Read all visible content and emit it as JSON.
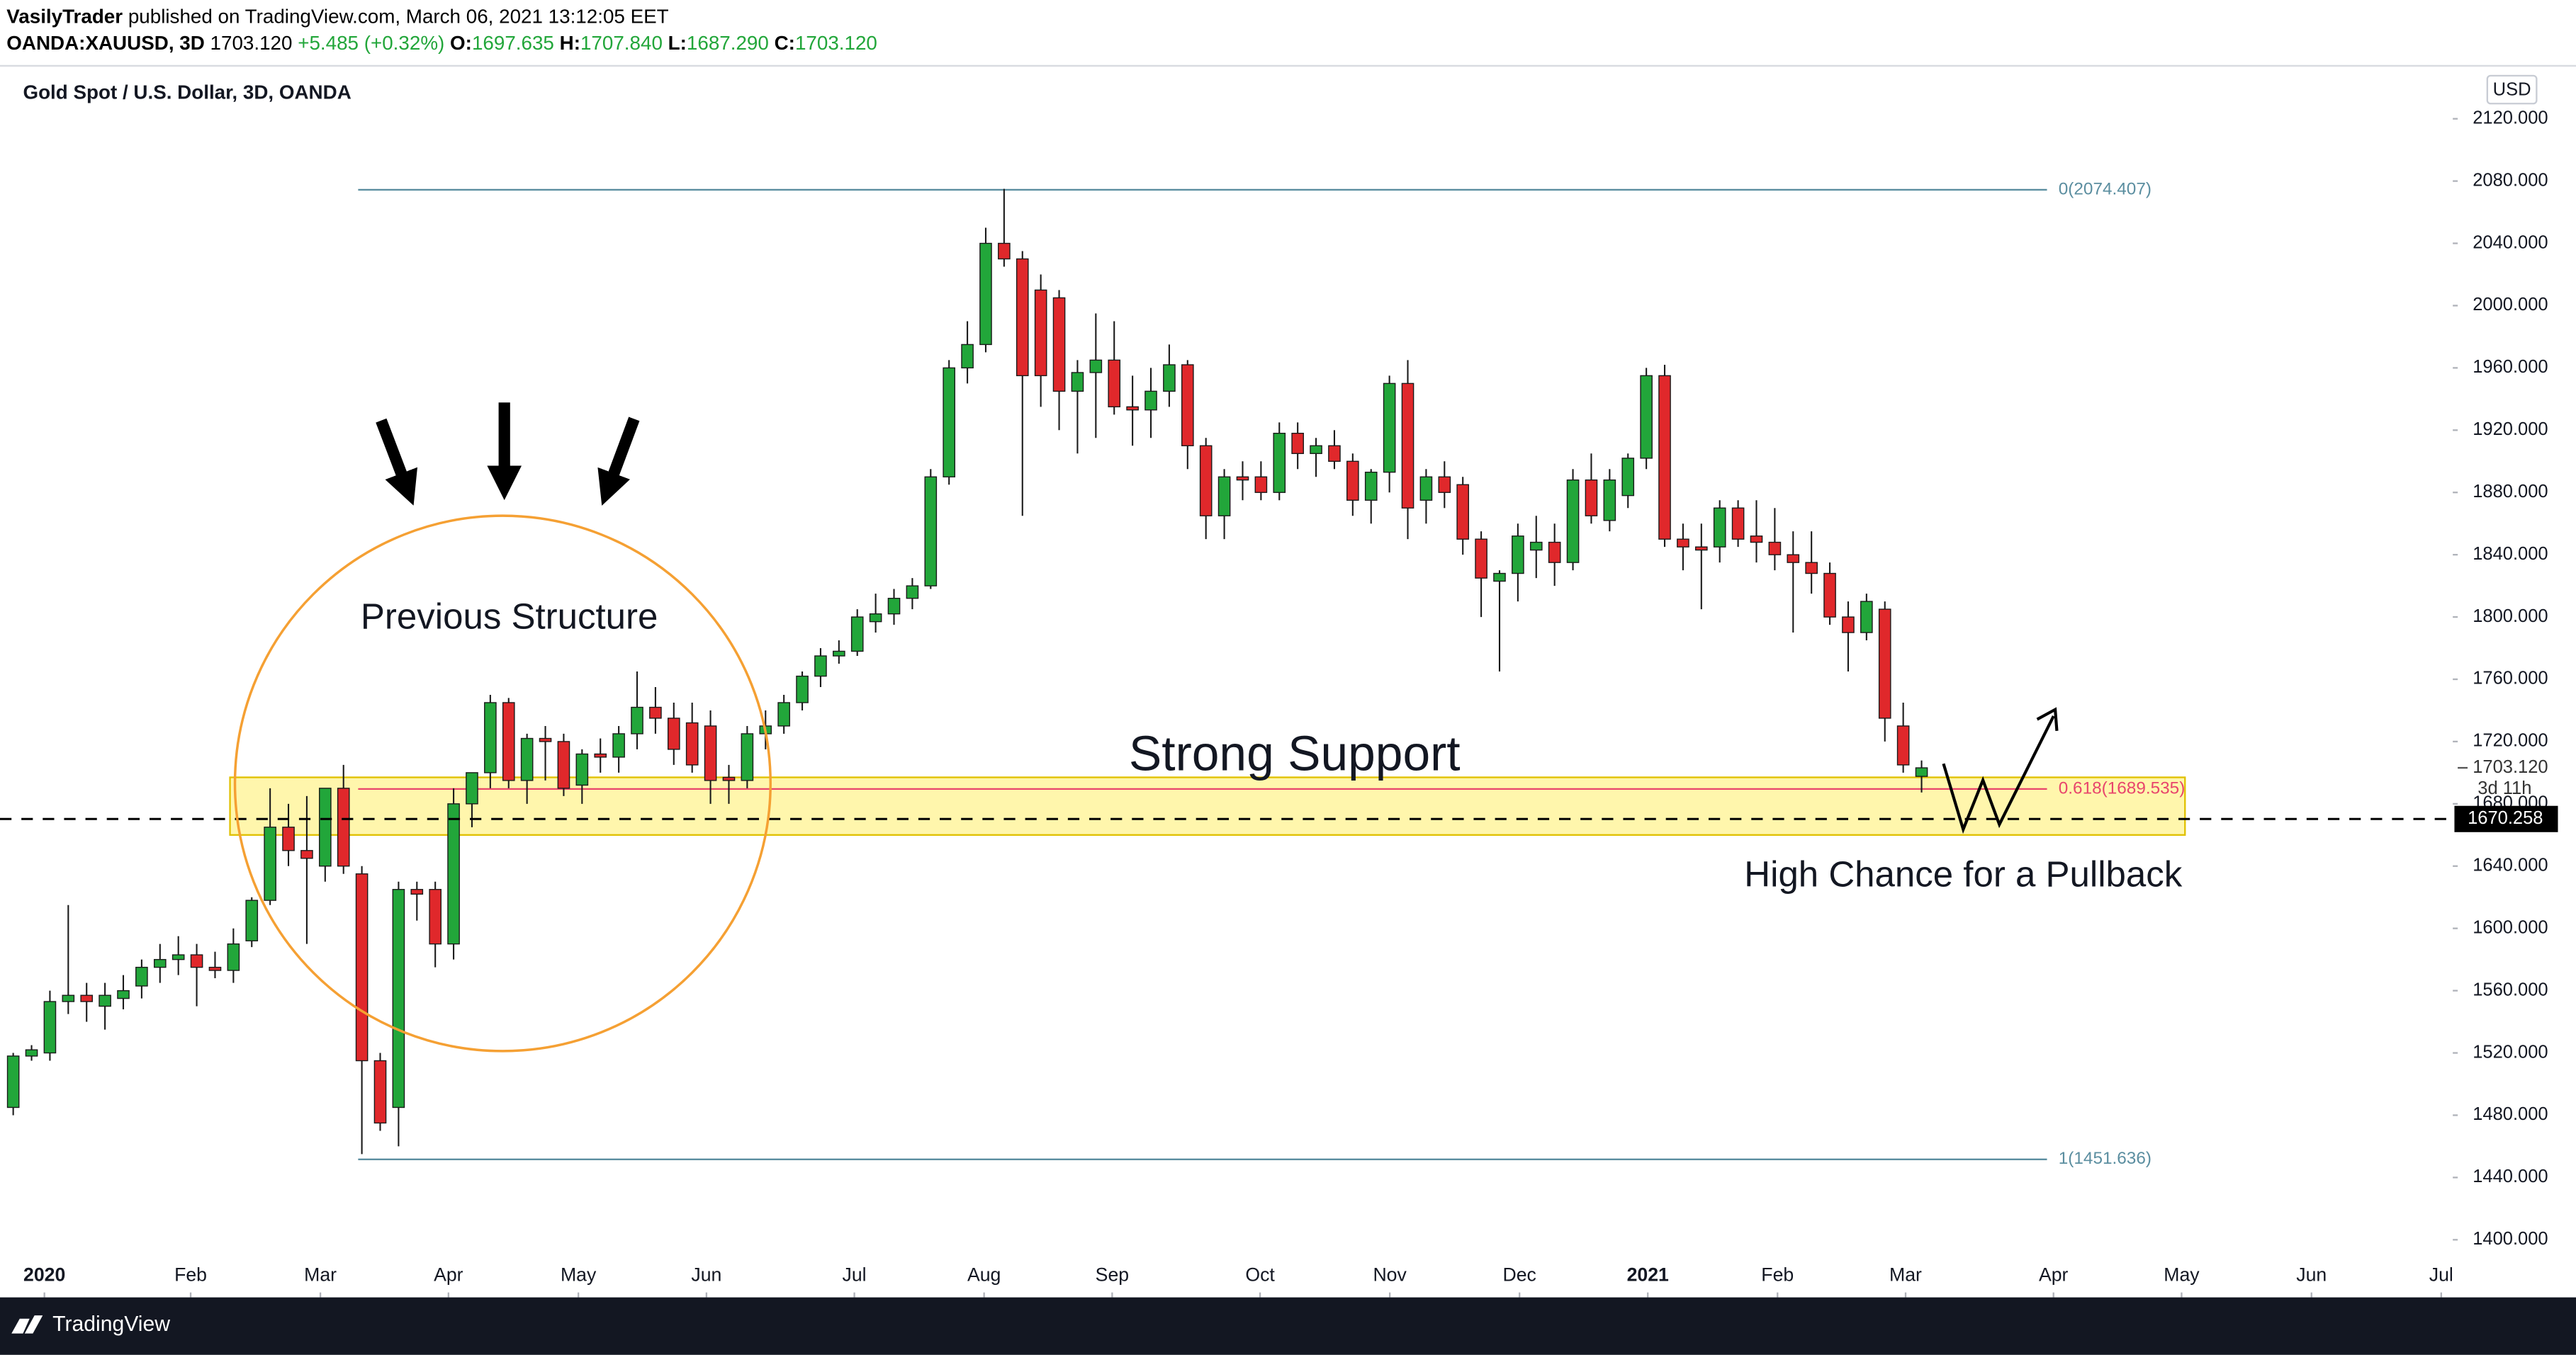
{
  "header": {
    "author": "VasilyTrader",
    "published": "published on TradingView.com, March 06, 2021 13:12:05 EET",
    "symbol": "OANDA:XAUUSD, 3D",
    "price": "1703.120",
    "change": "+5.485 (+0.32%)",
    "o_key": "O:",
    "o": "1697.635",
    "h_key": "H:",
    "h": "1707.840",
    "l_key": "L:",
    "l": "1687.290",
    "c_key": "C:",
    "c": "1703.120"
  },
  "footer": {
    "brand": "TradingView"
  },
  "chart_data": {
    "type": "candlestick",
    "title": "Gold Spot / U.S. Dollar, 3D, OANDA",
    "currency": "USD",
    "up_color": "#22a63a",
    "down_color": "#e0282b",
    "open": [
      1485,
      1518,
      1520,
      1553,
      1557,
      1550,
      1555,
      1563,
      1575,
      1580,
      1583,
      1575,
      1573,
      1592,
      1618,
      1665,
      1650,
      1640,
      1690,
      1635,
      1515,
      1485,
      1625,
      1625,
      1590,
      1680,
      1700,
      1745,
      1695,
      1722,
      1720,
      1692,
      1712,
      1710,
      1725,
      1742,
      1735,
      1732,
      1730,
      1697,
      1695,
      1725,
      1730,
      1745,
      1762,
      1775,
      1778,
      1797,
      1802,
      1812,
      1820,
      1890,
      1960,
      1975,
      2040,
      2030,
      2010,
      2005,
      1945,
      1957,
      1965,
      1935,
      1933,
      1945,
      1962,
      1910,
      1865,
      1890,
      1890,
      1880,
      1918,
      1905,
      1910,
      1900,
      1875,
      1893,
      1950,
      1875,
      1890,
      1885,
      1850,
      1823,
      1828,
      1843,
      1848,
      1835,
      1888,
      1862,
      1878,
      1902,
      1955,
      1850,
      1845,
      1845,
      1870,
      1852,
      1848,
      1840,
      1835,
      1828,
      1800,
      1790,
      1805,
      1730,
      1697.635
    ],
    "high": [
      1520,
      1525,
      1560,
      1615,
      1565,
      1565,
      1570,
      1580,
      1590,
      1595,
      1590,
      1585,
      1600,
      1620,
      1690,
      1680,
      1685,
      1690,
      1705,
      1640,
      1520,
      1630,
      1630,
      1630,
      1690,
      1700,
      1750,
      1748,
      1725,
      1730,
      1725,
      1715,
      1722,
      1730,
      1765,
      1755,
      1745,
      1745,
      1740,
      1705,
      1730,
      1740,
      1750,
      1765,
      1780,
      1785,
      1805,
      1815,
      1818,
      1825,
      1895,
      1965,
      1990,
      2050,
      2075,
      2035,
      2020,
      2010,
      1965,
      1995,
      1990,
      1955,
      1960,
      1975,
      1965,
      1915,
      1895,
      1900,
      1900,
      1925,
      1925,
      1915,
      1920,
      1905,
      1895,
      1955,
      1965,
      1895,
      1900,
      1890,
      1855,
      1830,
      1860,
      1865,
      1860,
      1895,
      1905,
      1895,
      1905,
      1960,
      1962,
      1860,
      1860,
      1875,
      1875,
      1875,
      1870,
      1855,
      1855,
      1835,
      1810,
      1815,
      1810,
      1745,
      1707.84
    ],
    "low": [
      1480,
      1515,
      1515,
      1545,
      1540,
      1535,
      1548,
      1555,
      1565,
      1570,
      1550,
      1568,
      1565,
      1588,
      1615,
      1640,
      1590,
      1630,
      1635,
      1455,
      1470,
      1460,
      1605,
      1575,
      1580,
      1665,
      1690,
      1690,
      1680,
      1695,
      1685,
      1680,
      1700,
      1700,
      1715,
      1725,
      1705,
      1700,
      1680,
      1680,
      1690,
      1715,
      1725,
      1740,
      1755,
      1770,
      1775,
      1790,
      1795,
      1805,
      1818,
      1885,
      1950,
      1970,
      2025,
      1865,
      1935,
      1920,
      1905,
      1915,
      1930,
      1910,
      1915,
      1935,
      1895,
      1850,
      1850,
      1875,
      1875,
      1875,
      1895,
      1890,
      1895,
      1865,
      1860,
      1880,
      1850,
      1860,
      1870,
      1840,
      1800,
      1765,
      1810,
      1825,
      1820,
      1830,
      1860,
      1855,
      1870,
      1895,
      1845,
      1830,
      1805,
      1835,
      1845,
      1835,
      1830,
      1790,
      1815,
      1795,
      1765,
      1785,
      1720,
      1700,
      1687.29
    ],
    "close": [
      1518,
      1522,
      1553,
      1557,
      1553,
      1557,
      1560,
      1575,
      1580,
      1583,
      1575,
      1573,
      1590,
      1618,
      1665,
      1650,
      1645,
      1690,
      1640,
      1515,
      1475,
      1625,
      1622,
      1590,
      1680,
      1700,
      1745,
      1695,
      1722,
      1720,
      1690,
      1712,
      1710,
      1725,
      1742,
      1735,
      1715,
      1705,
      1695,
      1695,
      1725,
      1730,
      1745,
      1762,
      1775,
      1778,
      1800,
      1802,
      1812,
      1820,
      1890,
      1960,
      1975,
      2040,
      2030,
      1955,
      1955,
      1945,
      1957,
      1965,
      1935,
      1933,
      1945,
      1962,
      1910,
      1865,
      1890,
      1888,
      1880,
      1918,
      1905,
      1910,
      1900,
      1875,
      1893,
      1950,
      1870,
      1890,
      1880,
      1850,
      1825,
      1828,
      1852,
      1848,
      1835,
      1888,
      1865,
      1888,
      1902,
      1955,
      1850,
      1845,
      1843,
      1870,
      1850,
      1848,
      1840,
      1835,
      1828,
      1800,
      1790,
      1810,
      1735,
      1705,
      1703.12
    ],
    "xlim": [
      -0.72,
      132.95
    ],
    "xticks": [
      {
        "value": 1.7,
        "label": "2020"
      },
      {
        "value": 9.67,
        "label": "Feb"
      },
      {
        "value": 16.74,
        "label": "Mar"
      },
      {
        "value": 23.72,
        "label": "Apr"
      },
      {
        "value": 30.8,
        "label": "May"
      },
      {
        "value": 37.78,
        "label": "Jun"
      },
      {
        "value": 45.84,
        "label": "Jul"
      },
      {
        "value": 52.91,
        "label": "Aug"
      },
      {
        "value": 59.89,
        "label": "Sep"
      },
      {
        "value": 67.95,
        "label": "Oct"
      },
      {
        "value": 75.02,
        "label": "Nov"
      },
      {
        "value": 82.09,
        "label": "Dec"
      },
      {
        "value": 89.08,
        "label": "2021"
      },
      {
        "value": 96.15,
        "label": "Feb"
      },
      {
        "value": 103.13,
        "label": "Mar"
      },
      {
        "value": 111.19,
        "label": "Apr"
      },
      {
        "value": 118.17,
        "label": "May"
      },
      {
        "value": 125.25,
        "label": "Jun"
      },
      {
        "value": 132.32,
        "label": "Jul"
      }
    ],
    "ylim": [
      1363,
      2154
    ],
    "yticks": [
      {
        "value": 1400,
        "label": "1400.000"
      },
      {
        "value": 1440,
        "label": "1440.000"
      },
      {
        "value": 1480,
        "label": "1480.000"
      },
      {
        "value": 1520,
        "label": "1520.000"
      },
      {
        "value": 1560,
        "label": "1560.000"
      },
      {
        "value": 1600,
        "label": "1600.000"
      },
      {
        "value": 1640,
        "label": "1640.000"
      },
      {
        "value": 1680,
        "label": "1680.000"
      },
      {
        "value": 1720,
        "label": "1720.000"
      },
      {
        "value": 1760,
        "label": "1760.000"
      },
      {
        "value": 1800,
        "label": "1800.000"
      },
      {
        "value": 1840,
        "label": "1840.000"
      },
      {
        "value": 1880,
        "label": "1880.000"
      },
      {
        "value": 1920,
        "label": "1920.000"
      },
      {
        "value": 1960,
        "label": "1960.000"
      },
      {
        "value": 2000,
        "label": "2000.000"
      },
      {
        "value": 2040,
        "label": "2040.000"
      },
      {
        "value": 2080,
        "label": "2080.000"
      },
      {
        "value": 2120,
        "label": "2120.000"
      }
    ],
    "fib_levels": [
      {
        "value": 2074.407,
        "label": "0(2074.407)",
        "color": "#5b8ea0"
      },
      {
        "value": 1689.535,
        "label": "0.618(1689.535)",
        "color": "#e8456c"
      },
      {
        "value": 1451.636,
        "label": "1(1451.636)",
        "color": "#5b8ea0"
      }
    ],
    "support_zone": [
      1660,
      1697
    ],
    "dashed_level": {
      "value": 1670.258,
      "label": "1670.258"
    },
    "last_price": {
      "value": 1703.12,
      "label": "1703.120"
    },
    "countdown": "3d 11h",
    "annotations": [
      "Previous Structure",
      "Strong Support",
      "High Chance for a Pullback"
    ]
  }
}
